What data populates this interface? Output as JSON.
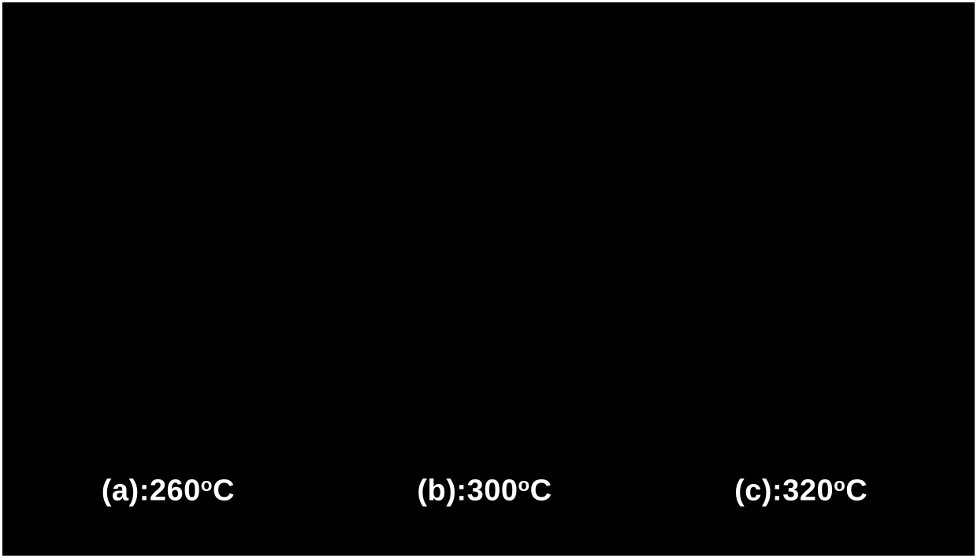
{
  "figure": {
    "background_color": "#000000",
    "border_color": "#ffffff",
    "border_width": 3,
    "text_color": "#ffffff",
    "caption_fontsize": 38,
    "caption_fontweight": 900,
    "panels": [
      {
        "label_prefix": "(a):",
        "temperature": "260",
        "unit_suffix": "C"
      },
      {
        "label_prefix": "(b):",
        "temperature": "300",
        "unit_suffix": "C"
      },
      {
        "label_prefix": "(c):",
        "temperature": "320",
        "unit_suffix": "C"
      }
    ]
  }
}
